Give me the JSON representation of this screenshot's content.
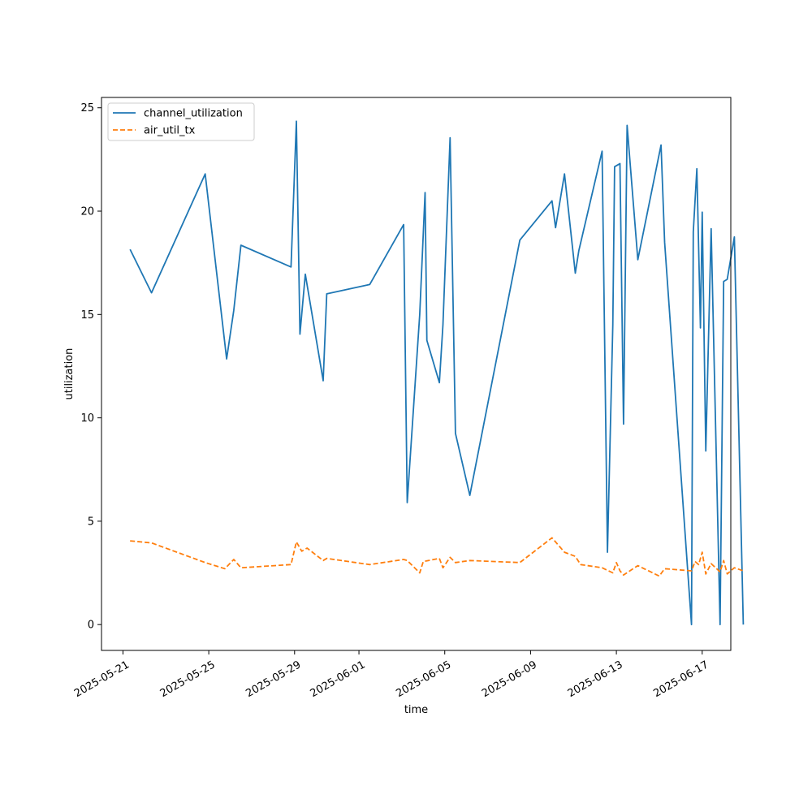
{
  "chart_data": {
    "type": "line",
    "title": "",
    "xlabel": "time",
    "ylabel": "utilization",
    "xlim": [
      "2025-05-20T00:00",
      "2025-06-18T08:00"
    ],
    "ylim": [
      -1.25,
      25.5
    ],
    "grid": false,
    "legend_position": "upper-left",
    "x_ticks": [
      "2025-05-21",
      "2025-05-25",
      "2025-05-29",
      "2025-06-01",
      "2025-06-05",
      "2025-06-09",
      "2025-06-13",
      "2025-06-17"
    ],
    "y_ticks": [
      0,
      5,
      10,
      15,
      20,
      25
    ],
    "y_tick_labels": [
      "0",
      "5",
      "10",
      "15",
      "20",
      "25"
    ],
    "series": [
      {
        "name": "channel_utilization",
        "color": "#1f77b4",
        "dash": "solid",
        "points": [
          [
            "2025-05-21T08:00",
            18.15
          ],
          [
            "2025-05-22T08:00",
            16.05
          ],
          [
            "2025-05-24T20:00",
            21.8
          ],
          [
            "2025-05-25T20:00",
            12.85
          ],
          [
            "2025-05-26T04:00",
            15.2
          ],
          [
            "2025-05-26T12:00",
            18.35
          ],
          [
            "2025-05-28T20:00",
            17.3
          ],
          [
            "2025-05-29T00:00",
            22.0
          ],
          [
            "2025-05-29T02:00",
            24.35
          ],
          [
            "2025-05-29T06:00",
            14.05
          ],
          [
            "2025-05-29T12:00",
            16.95
          ],
          [
            "2025-05-30T08:00",
            11.8
          ],
          [
            "2025-05-30T12:00",
            16.0
          ],
          [
            "2025-06-01T12:00",
            16.45
          ],
          [
            "2025-06-03T02:00",
            19.35
          ],
          [
            "2025-06-03T06:00",
            5.9
          ],
          [
            "2025-06-03T20:00",
            15.0
          ],
          [
            "2025-06-04T02:00",
            20.9
          ],
          [
            "2025-06-04T04:00",
            13.75
          ],
          [
            "2025-06-04T18:00",
            11.7
          ],
          [
            "2025-06-04T22:00",
            14.5
          ],
          [
            "2025-06-05T06:00",
            23.55
          ],
          [
            "2025-06-05T12:00",
            9.25
          ],
          [
            "2025-06-06T04:00",
            6.25
          ],
          [
            "2025-06-08T12:00",
            18.6
          ],
          [
            "2025-06-10T00:00",
            20.5
          ],
          [
            "2025-06-10T04:00",
            19.2
          ],
          [
            "2025-06-10T14:00",
            21.8
          ],
          [
            "2025-06-11T02:00",
            17.0
          ],
          [
            "2025-06-11T06:00",
            18.1
          ],
          [
            "2025-06-12T08:00",
            22.9
          ],
          [
            "2025-06-12T14:00",
            3.5
          ],
          [
            "2025-06-12T20:00",
            14.5
          ],
          [
            "2025-06-12T22:00",
            22.15
          ],
          [
            "2025-06-13T04:00",
            22.3
          ],
          [
            "2025-06-13T08:00",
            9.7
          ],
          [
            "2025-06-13T12:00",
            24.15
          ],
          [
            "2025-06-14T00:00",
            17.65
          ],
          [
            "2025-06-15T02:00",
            23.2
          ],
          [
            "2025-06-15T06:00",
            18.5
          ],
          [
            "2025-06-16T12:00",
            0.0
          ],
          [
            "2025-06-16T14:00",
            19.0
          ],
          [
            "2025-06-16T18:00",
            22.05
          ],
          [
            "2025-06-16T22:00",
            14.35
          ],
          [
            "2025-06-17T00:00",
            19.95
          ],
          [
            "2025-06-17T04:00",
            8.4
          ],
          [
            "2025-06-17T10:00",
            19.15
          ],
          [
            "2025-06-17T20:00",
            0.0
          ],
          [
            "2025-06-18T00:00",
            16.6
          ],
          [
            "2025-06-18T04:00",
            16.7
          ],
          [
            "2025-06-18T12:00",
            18.75
          ],
          [
            "2025-06-18T22:00",
            0.0
          ]
        ]
      },
      {
        "name": "air_util_tx",
        "color": "#ff7f0e",
        "dash": "dashed",
        "points": [
          [
            "2025-05-21T08:00",
            4.05
          ],
          [
            "2025-05-22T08:00",
            3.95
          ],
          [
            "2025-05-24T20:00",
            3.0
          ],
          [
            "2025-05-25T18:00",
            2.7
          ],
          [
            "2025-05-26T04:00",
            3.15
          ],
          [
            "2025-05-26T12:00",
            2.75
          ],
          [
            "2025-05-28T20:00",
            2.9
          ],
          [
            "2025-05-29T02:00",
            4.0
          ],
          [
            "2025-05-29T08:00",
            3.55
          ],
          [
            "2025-05-29T14:00",
            3.7
          ],
          [
            "2025-05-30T08:00",
            3.1
          ],
          [
            "2025-05-30T12:00",
            3.2
          ],
          [
            "2025-06-01T12:00",
            2.9
          ],
          [
            "2025-06-03T02:00",
            3.15
          ],
          [
            "2025-06-03T06:00",
            3.1
          ],
          [
            "2025-06-03T20:00",
            2.5
          ],
          [
            "2025-06-04T00:00",
            3.05
          ],
          [
            "2025-06-04T18:00",
            3.2
          ],
          [
            "2025-06-04T22:00",
            2.75
          ],
          [
            "2025-06-05T06:00",
            3.25
          ],
          [
            "2025-06-05T12:00",
            3.0
          ],
          [
            "2025-06-06T04:00",
            3.1
          ],
          [
            "2025-06-08T12:00",
            3.0
          ],
          [
            "2025-06-10T00:00",
            4.2
          ],
          [
            "2025-06-10T14:00",
            3.5
          ],
          [
            "2025-06-11T02:00",
            3.3
          ],
          [
            "2025-06-11T08:00",
            2.9
          ],
          [
            "2025-06-12T08:00",
            2.75
          ],
          [
            "2025-06-12T20:00",
            2.5
          ],
          [
            "2025-06-13T00:00",
            3.0
          ],
          [
            "2025-06-13T04:00",
            2.6
          ],
          [
            "2025-06-13T08:00",
            2.4
          ],
          [
            "2025-06-14T00:00",
            2.85
          ],
          [
            "2025-06-15T00:00",
            2.35
          ],
          [
            "2025-06-15T06:00",
            2.7
          ],
          [
            "2025-06-16T12:00",
            2.6
          ],
          [
            "2025-06-16T16:00",
            3.05
          ],
          [
            "2025-06-16T20:00",
            2.9
          ],
          [
            "2025-06-17T00:00",
            3.5
          ],
          [
            "2025-06-17T04:00",
            2.45
          ],
          [
            "2025-06-17T10:00",
            2.95
          ],
          [
            "2025-06-17T20:00",
            2.55
          ],
          [
            "2025-06-18T00:00",
            3.1
          ],
          [
            "2025-06-18T04:00",
            2.45
          ],
          [
            "2025-06-18T12:00",
            2.75
          ],
          [
            "2025-06-18T22:00",
            2.6
          ]
        ]
      }
    ]
  }
}
